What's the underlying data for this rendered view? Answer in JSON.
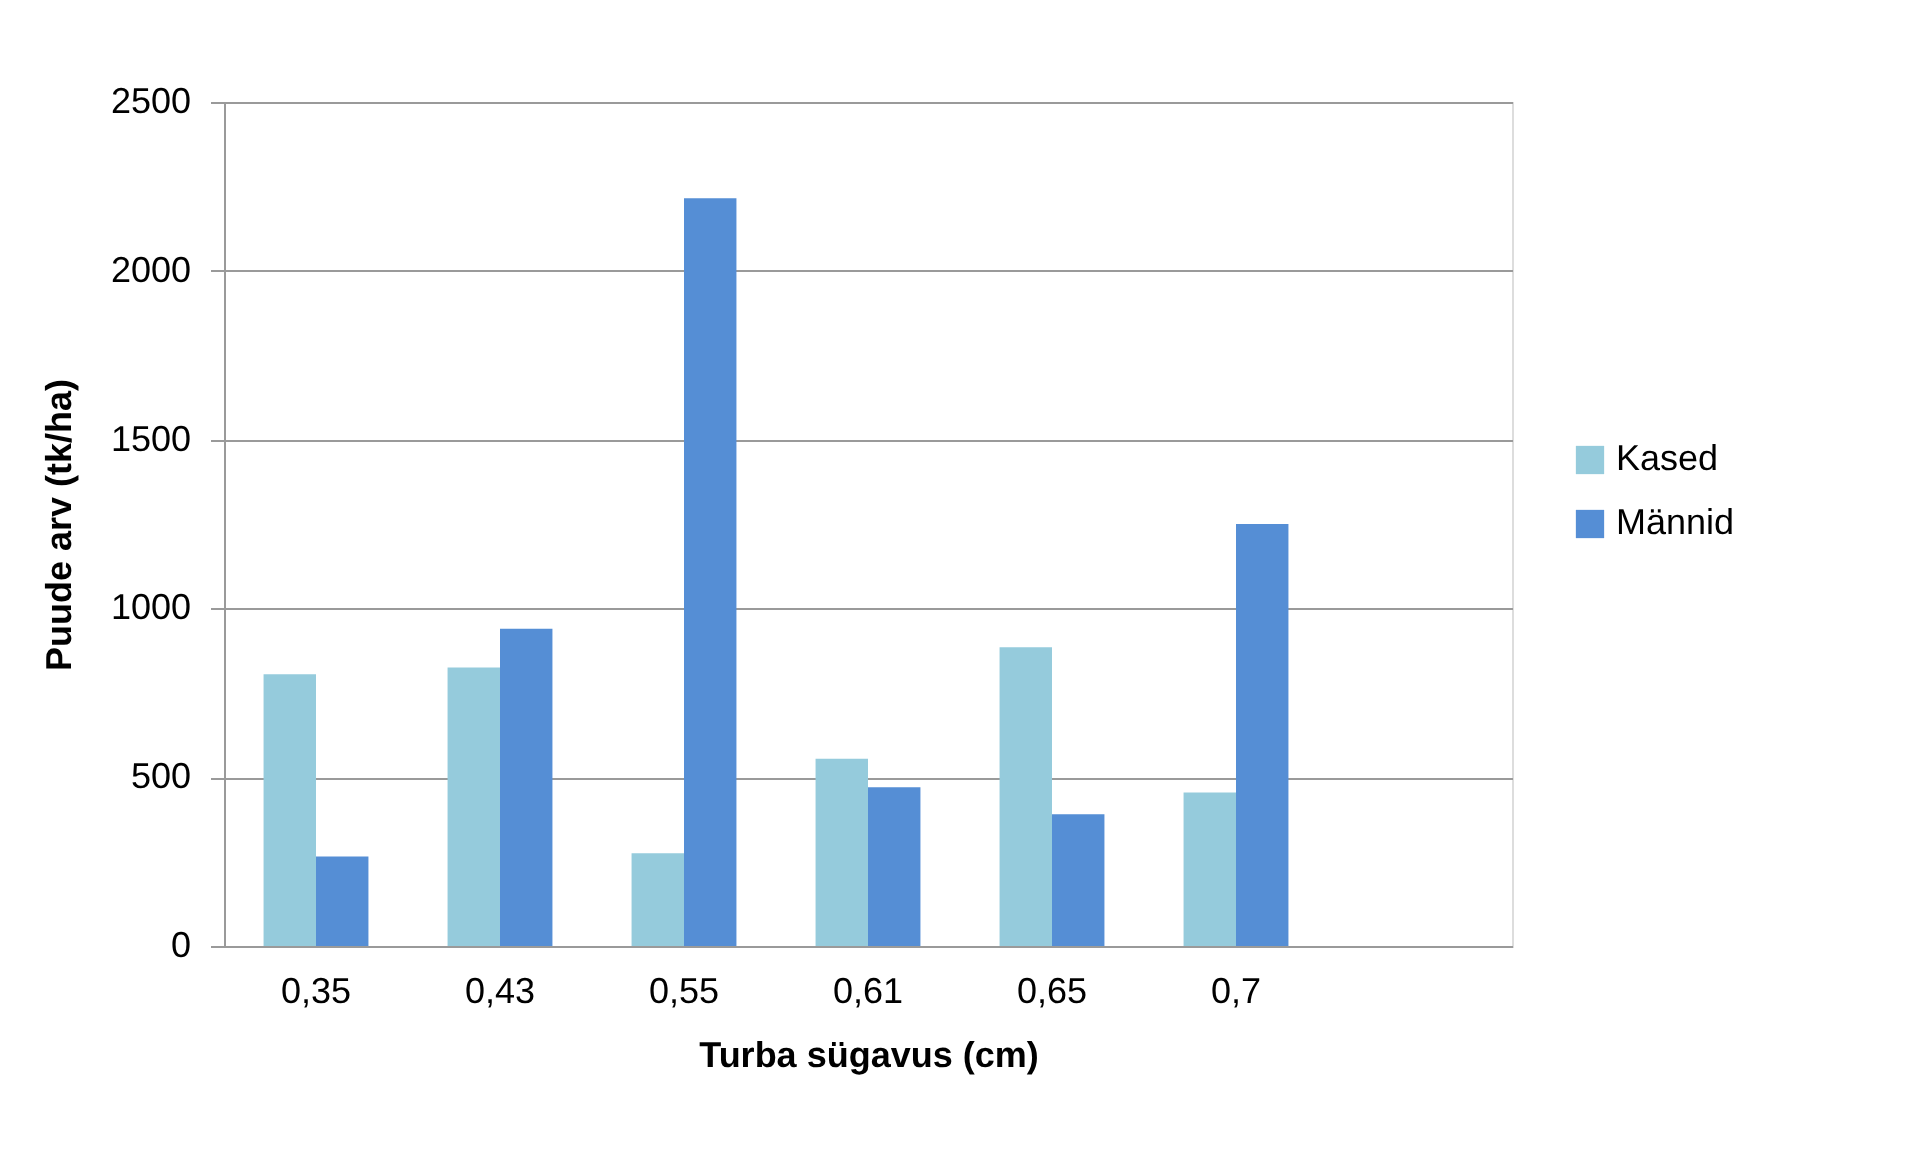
{
  "chart_data": {
    "type": "bar",
    "xlabel": "Turba sügavus (cm)",
    "ylabel": "Puude arv (tk/ha)",
    "categories": [
      "0,35",
      "0,43",
      "0,55",
      "0,61",
      "0,65",
      "0,7",
      null
    ],
    "series": [
      {
        "name": "Kased",
        "color": "#95cbdc",
        "values": [
          805,
          825,
          275,
          555,
          885,
          455,
          null
        ]
      },
      {
        "name": "Männid",
        "color": "#558ed5",
        "values": [
          265,
          940,
          2215,
          470,
          390,
          1250,
          null
        ]
      }
    ],
    "ylim": [
      0,
      2500
    ],
    "yticks": [
      0,
      500,
      1000,
      1500,
      2000,
      2500
    ],
    "grid": "y",
    "legend": "right"
  }
}
